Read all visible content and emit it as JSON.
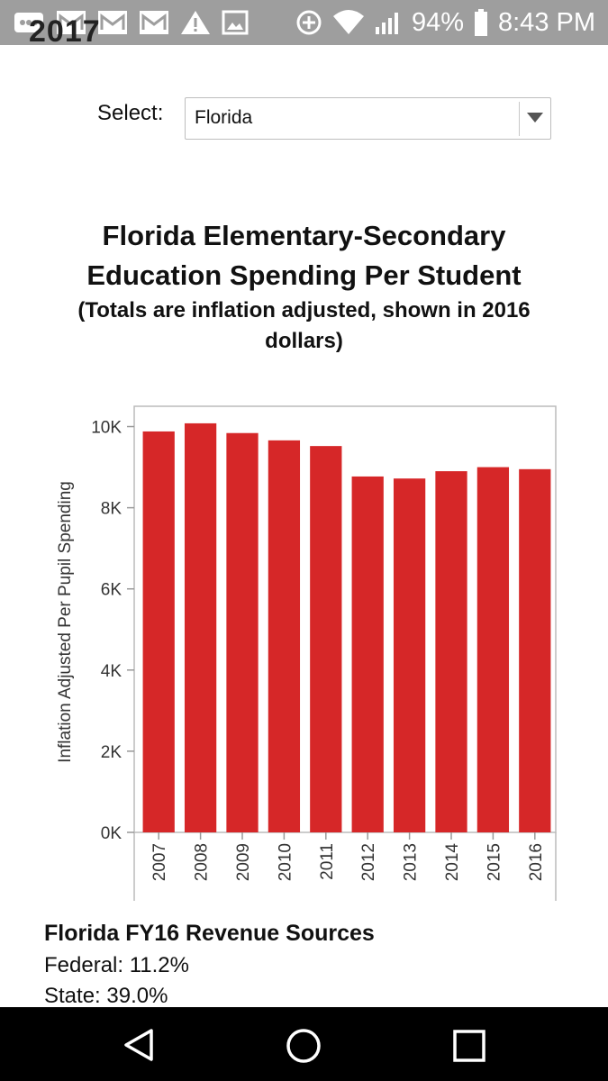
{
  "status_bar": {
    "battery_percent": "94%",
    "time": "8:43 PM",
    "left_icons": [
      "notification-icon",
      "mail-icon",
      "mail-icon",
      "mail-icon",
      "warning-icon",
      "image-icon"
    ],
    "right_icons": [
      "data-saver-icon",
      "wifi-icon",
      "signal-icon",
      "battery-icon"
    ]
  },
  "cropped_heading": "2017",
  "select": {
    "label": "Select:",
    "value": "Florida"
  },
  "chart_title": "Florida Elementary-Secondary Education Spending Per Student",
  "chart_subtitle": "(Totals are inflation adjusted, shown in 2016 dollars)",
  "chart_data": {
    "type": "bar",
    "categories": [
      "2007",
      "2008",
      "2009",
      "2010",
      "2011",
      "2012",
      "2013",
      "2014",
      "2015",
      "2016"
    ],
    "values": [
      9880,
      10080,
      9840,
      9660,
      9520,
      8770,
      8720,
      8900,
      9000,
      8950
    ],
    "ylabel": "Inflation Adjusted Per Pupil Spending",
    "xlabel": "",
    "ylim": [
      0,
      10500
    ],
    "yticks": [
      0,
      2000,
      4000,
      6000,
      8000,
      10000
    ],
    "ytick_labels": [
      "0K",
      "2K",
      "4K",
      "6K",
      "8K",
      "10K"
    ],
    "bar_color": "#d62728",
    "grid": false
  },
  "revenue": {
    "title": "Florida FY16 Revenue Sources",
    "federal": "Federal: 11.2%",
    "state": "State: 39.0%"
  },
  "nav_icons": [
    "back-icon",
    "home-icon",
    "recents-icon"
  ]
}
